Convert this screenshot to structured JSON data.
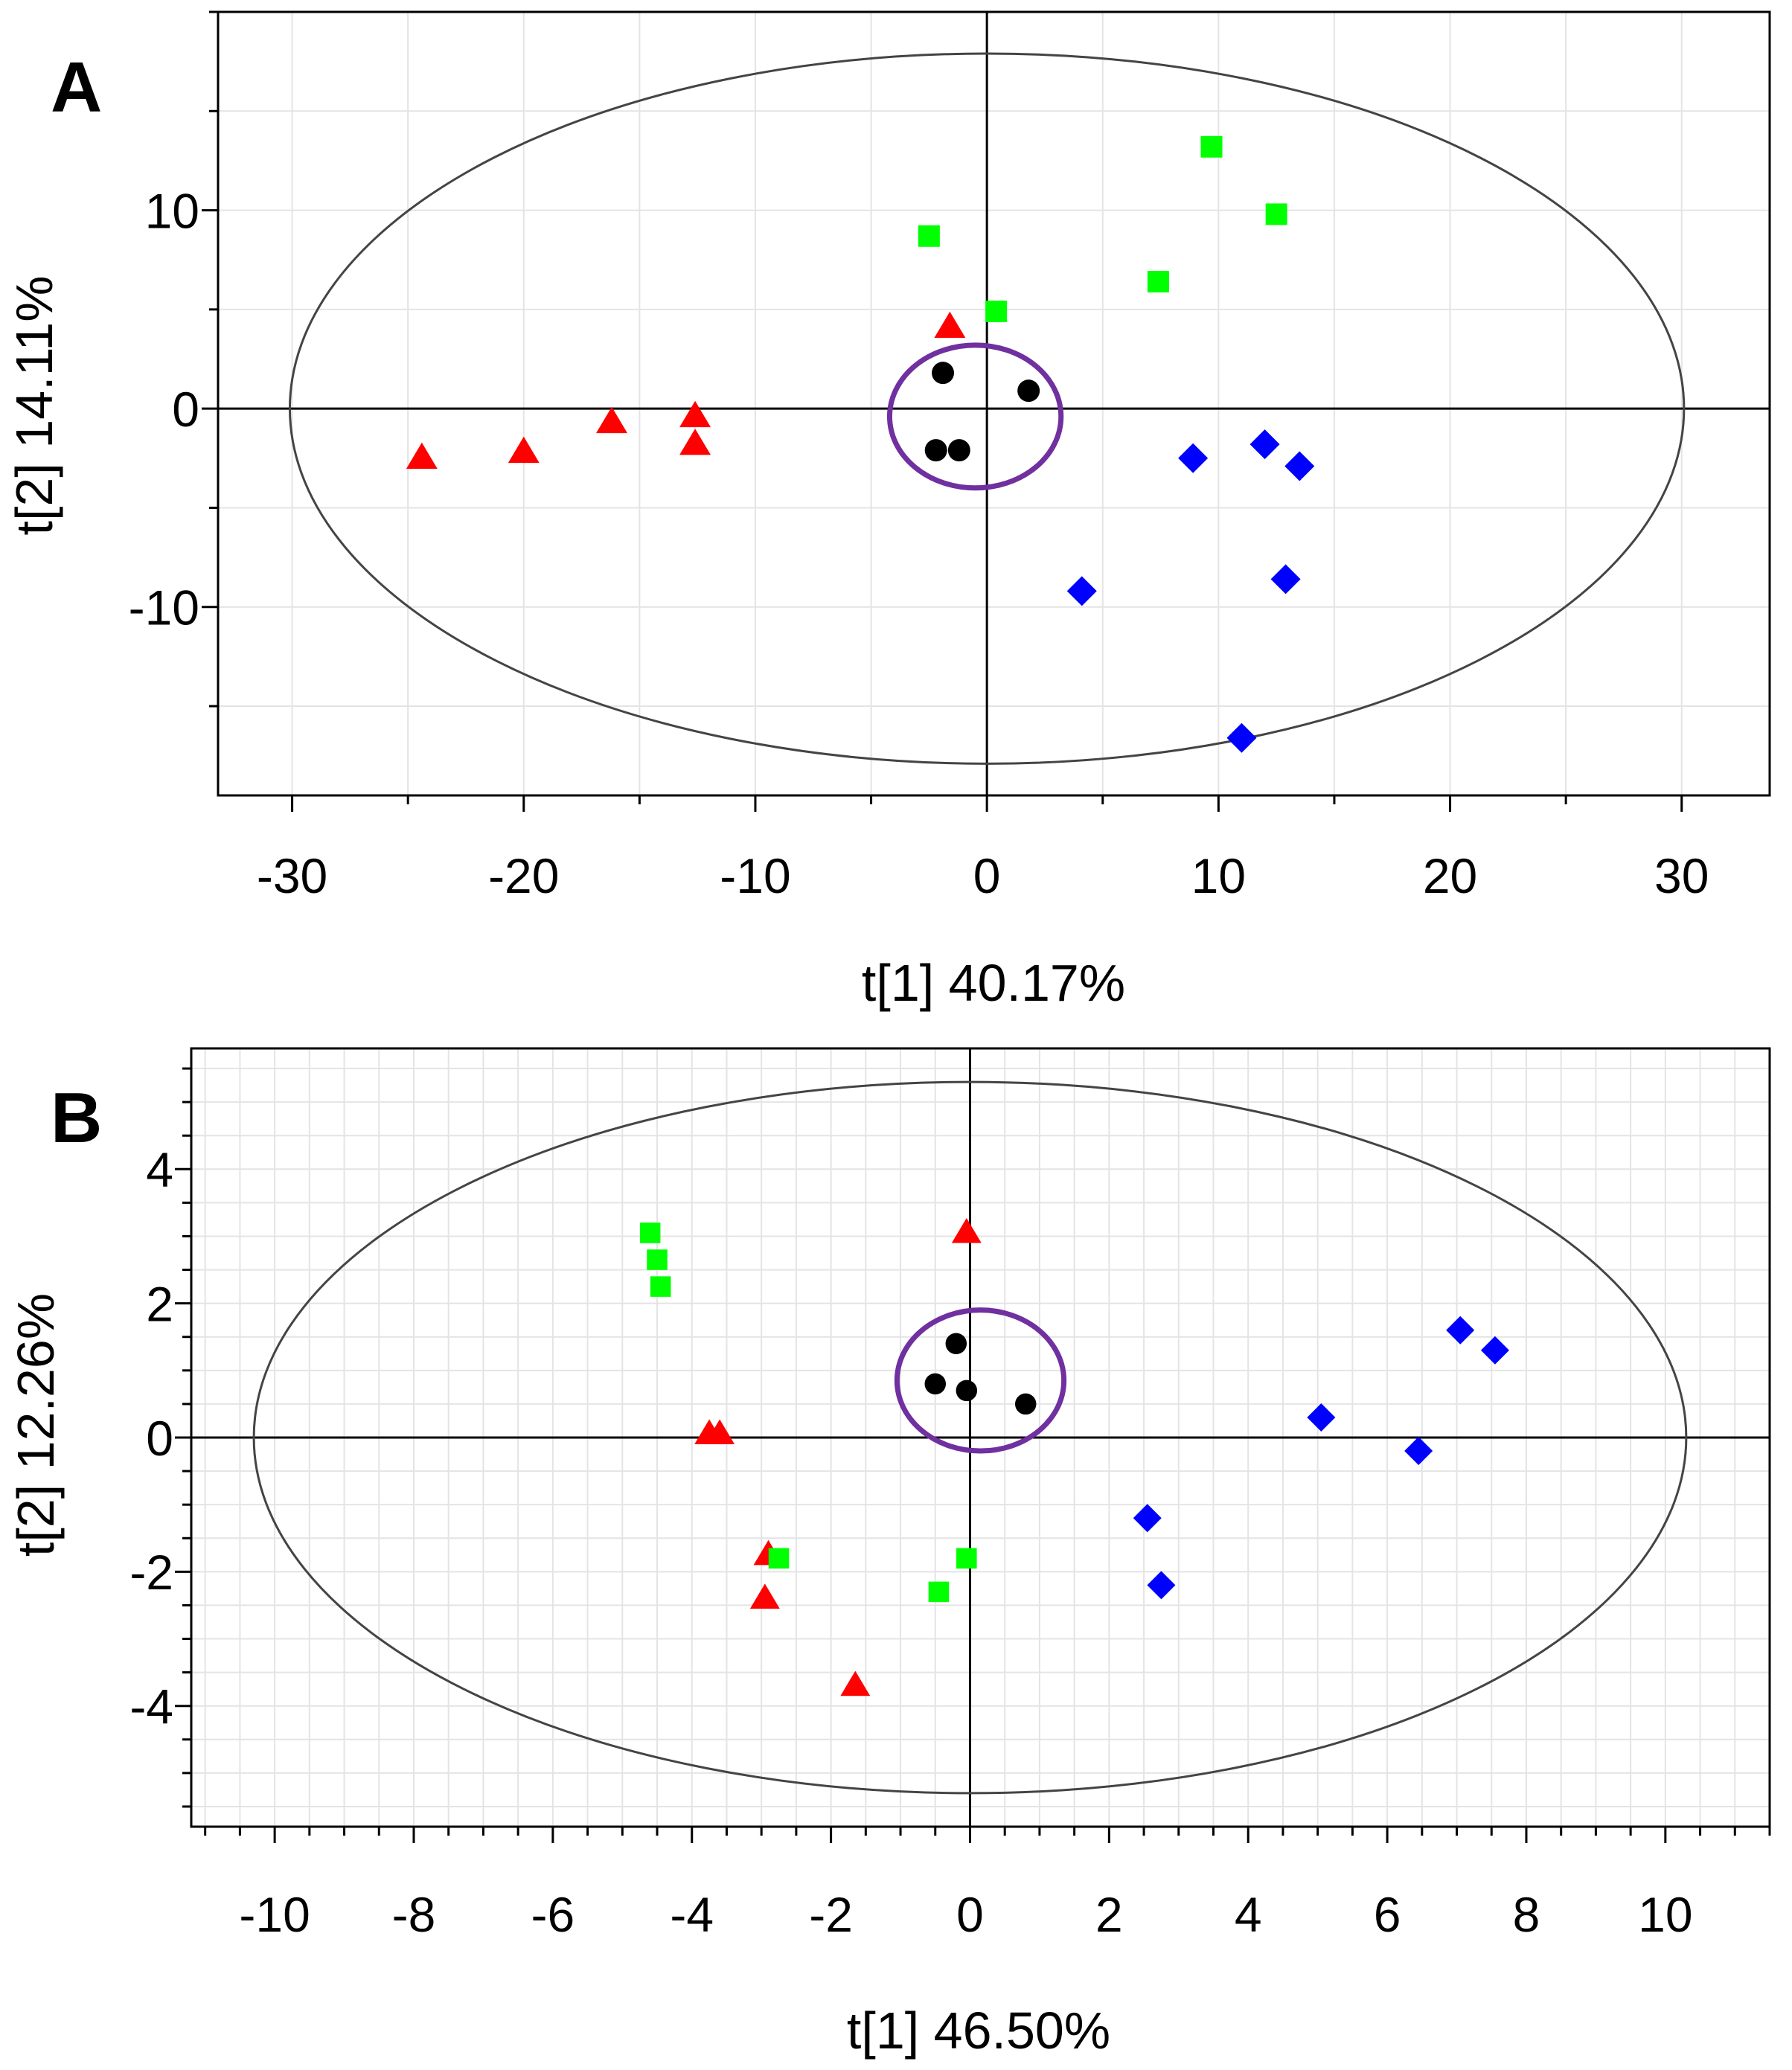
{
  "chart_data": [
    {
      "type": "scatter",
      "panel_label": "A",
      "xlabel": "t[1] 40.17%",
      "ylabel": "t[2] 14.11%",
      "xlim": [
        -33.2,
        33.8
      ],
      "ylim": [
        -19.5,
        20.0
      ],
      "xticks": [
        -30,
        -20,
        -10,
        0,
        10,
        20,
        30
      ],
      "yticks": [
        -10,
        0,
        10
      ],
      "xtick_labels": [
        "-30",
        "-20",
        "-10",
        "0",
        "10",
        "20",
        "30"
      ],
      "ytick_labels": [
        "-10",
        "0",
        "10"
      ],
      "grid": true,
      "axis_lines_at_zero": true,
      "hotelling_ellipse": {
        "cx": 0,
        "cy": 0,
        "rx": 30.1,
        "ry": 17.9
      },
      "highlight_ellipse": {
        "cx": -0.5,
        "cy": -0.4,
        "rx": 3.7,
        "ry": 3.6,
        "color": "#7030a0"
      },
      "series": [
        {
          "marker": "triangle",
          "color": "#ff0000",
          "points": [
            [
              -24.4,
              -2.5
            ],
            [
              -20.0,
              -2.2
            ],
            [
              -16.2,
              -0.7
            ],
            [
              -12.6,
              -0.4
            ],
            [
              -12.6,
              -1.8
            ],
            [
              -1.6,
              4.1
            ]
          ]
        },
        {
          "marker": "square",
          "color": "#00ff00",
          "points": [
            [
              -2.5,
              8.7
            ],
            [
              0.4,
              4.9
            ],
            [
              7.4,
              6.4
            ],
            [
              9.7,
              13.2
            ],
            [
              12.5,
              9.8
            ]
          ]
        },
        {
          "marker": "diamond",
          "color": "#0000ff",
          "points": [
            [
              4.1,
              -9.2
            ],
            [
              8.9,
              -2.5
            ],
            [
              12.0,
              -1.8
            ],
            [
              13.5,
              -2.9
            ],
            [
              12.9,
              -8.6
            ],
            [
              11.0,
              -16.6
            ]
          ]
        },
        {
          "marker": "circle",
          "color": "#000000",
          "points": [
            [
              -1.9,
              1.8
            ],
            [
              1.8,
              0.9
            ],
            [
              -2.2,
              -2.1
            ],
            [
              -1.2,
              -2.1
            ]
          ]
        }
      ]
    },
    {
      "type": "scatter",
      "panel_label": "B",
      "xlabel": "t[1] 46.50%",
      "ylabel": "t[2] 12.26%",
      "xlim": [
        -11.2,
        11.5
      ],
      "ylim": [
        -5.8,
        5.8
      ],
      "xticks": [
        -10,
        -8,
        -6,
        -4,
        -2,
        0,
        2,
        4,
        6,
        8,
        10
      ],
      "yticks": [
        -4,
        -2,
        0,
        2,
        4
      ],
      "xtick_labels": [
        "-10",
        "-8",
        "-6",
        "-4",
        "-2",
        "0",
        "2",
        "4",
        "6",
        "8",
        "10"
      ],
      "ytick_labels": [
        "-4",
        "-2",
        "0",
        "2",
        "4"
      ],
      "grid": true,
      "axis_lines_at_zero": true,
      "hotelling_ellipse": {
        "cx": 0,
        "cy": 0,
        "rx": 10.3,
        "ry": 5.3
      },
      "highlight_ellipse": {
        "cx": 0.15,
        "cy": 0.85,
        "rx": 1.2,
        "ry": 1.05,
        "color": "#7030a0"
      },
      "series": [
        {
          "marker": "triangle",
          "color": "#ff0000",
          "points": [
            [
              -0.05,
              3.05
            ],
            [
              -3.75,
              0.05
            ],
            [
              -3.6,
              0.05
            ],
            [
              -2.9,
              -1.75
            ],
            [
              -2.95,
              -2.4
            ],
            [
              -1.65,
              -3.7
            ]
          ]
        },
        {
          "marker": "square",
          "color": "#00ff00",
          "points": [
            [
              -4.6,
              3.05
            ],
            [
              -4.5,
              2.65
            ],
            [
              -4.45,
              2.25
            ],
            [
              -2.75,
              -1.8
            ],
            [
              -0.05,
              -1.8
            ],
            [
              -0.45,
              -2.3
            ]
          ]
        },
        {
          "marker": "diamond",
          "color": "#0000ff",
          "points": [
            [
              7.05,
              1.6
            ],
            [
              7.55,
              1.3
            ],
            [
              5.05,
              0.3
            ],
            [
              6.45,
              -0.2
            ],
            [
              2.55,
              -1.2
            ],
            [
              2.75,
              -2.2
            ]
          ]
        },
        {
          "marker": "circle",
          "color": "#000000",
          "points": [
            [
              -0.2,
              1.4
            ],
            [
              -0.5,
              0.8
            ],
            [
              -0.05,
              0.7
            ],
            [
              0.8,
              0.5
            ]
          ]
        }
      ]
    }
  ]
}
